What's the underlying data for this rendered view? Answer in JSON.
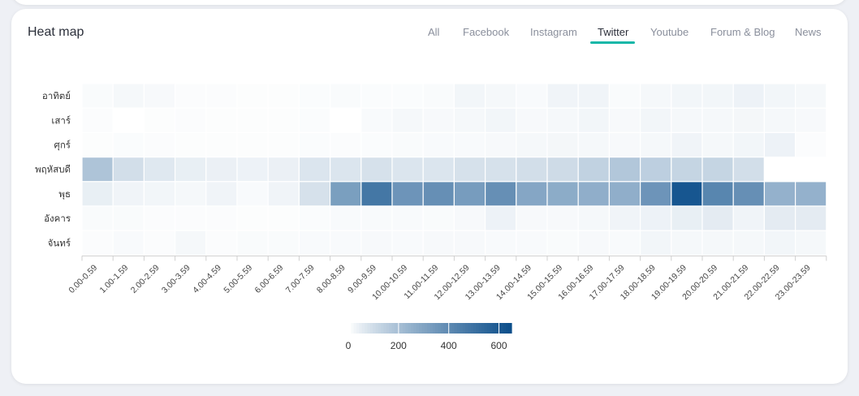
{
  "card": {
    "title": "Heat map"
  },
  "tabs": [
    {
      "label": "All",
      "active": false
    },
    {
      "label": "Facebook",
      "active": false
    },
    {
      "label": "Instagram",
      "active": false
    },
    {
      "label": "Twitter",
      "active": true
    },
    {
      "label": "Youtube",
      "active": false
    },
    {
      "label": "Forum & Blog",
      "active": false
    },
    {
      "label": "News",
      "active": false
    }
  ],
  "colors": {
    "accent": "#13b7a8",
    "heat_low": "#ffffff",
    "heat_high": "#0d4f8b"
  },
  "chart_data": {
    "type": "heatmap",
    "title": "",
    "xlabel": "",
    "ylabel": "",
    "x": [
      "0.00-0.59",
      "1.00-1.59",
      "2.00-2.59",
      "3.00-3.59",
      "4.00-4.59",
      "5.00-5.59",
      "6.00-6.59",
      "7.00-7.59",
      "8.00-8.59",
      "9.00-9.59",
      "10.00-10.59",
      "11.00-11.59",
      "12.00-12.59",
      "13.00-13.59",
      "14.00-14.59",
      "15.00-15.59",
      "16.00-16.59",
      "17.00-17.59",
      "18.00-18.59",
      "19.00-19.59",
      "20.00-20.59",
      "21.00-21.59",
      "22.00-22.59",
      "23.00-23.59"
    ],
    "y": [
      "อาทิตย์",
      "เสาร์",
      "ศุกร์",
      "พฤหัสบดี",
      "พุธ",
      "อังคาร",
      "จันทร์"
    ],
    "values": [
      [
        8,
        15,
        12,
        5,
        5,
        4,
        4,
        6,
        8,
        6,
        6,
        8,
        20,
        15,
        10,
        25,
        25,
        8,
        15,
        20,
        20,
        30,
        20,
        15
      ],
      [
        5,
        0,
        4,
        5,
        4,
        4,
        4,
        6,
        0,
        10,
        15,
        12,
        15,
        20,
        12,
        15,
        20,
        12,
        20,
        15,
        15,
        18,
        15,
        12
      ],
      [
        4,
        6,
        5,
        4,
        4,
        4,
        4,
        6,
        5,
        6,
        8,
        10,
        10,
        12,
        15,
        18,
        15,
        12,
        15,
        25,
        15,
        20,
        30,
        5
      ],
      [
        180,
        90,
        60,
        40,
        35,
        30,
        35,
        70,
        70,
        80,
        70,
        70,
        80,
        80,
        90,
        100,
        130,
        170,
        140,
        120,
        120,
        90,
        0,
        0
      ],
      [
        40,
        25,
        20,
        15,
        25,
        10,
        25,
        80,
        320,
        480,
        360,
        380,
        330,
        380,
        290,
        270,
        260,
        260,
        360,
        620,
        420,
        380,
        250,
        250
      ],
      [
        8,
        8,
        5,
        5,
        5,
        4,
        4,
        6,
        10,
        10,
        10,
        8,
        12,
        30,
        12,
        12,
        15,
        25,
        30,
        40,
        50,
        25,
        50,
        50
      ],
      [
        5,
        10,
        5,
        15,
        5,
        8,
        8,
        10,
        10,
        12,
        10,
        12,
        12,
        10,
        10,
        8,
        12,
        10,
        20,
        15,
        15,
        15,
        20,
        15
      ]
    ],
    "colorbar": {
      "ticks": [
        0,
        200,
        400,
        600
      ],
      "range": [
        0,
        650
      ]
    }
  }
}
